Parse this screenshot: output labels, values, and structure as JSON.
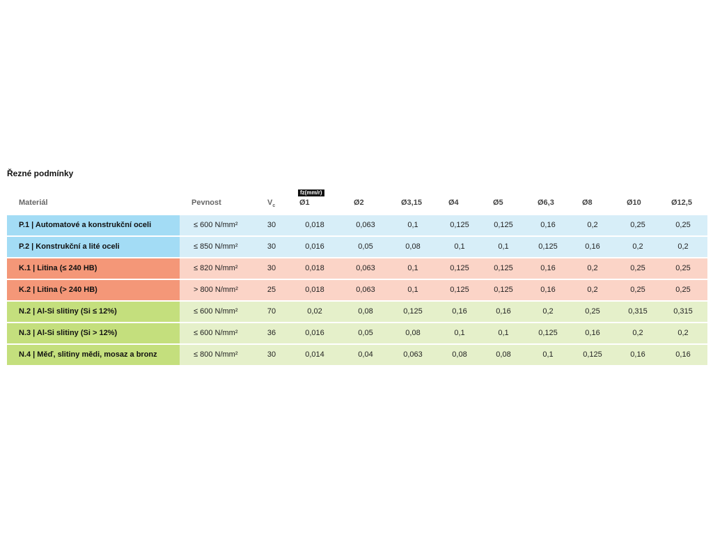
{
  "title": "Řezné podmínky",
  "header": {
    "material": "Materiál",
    "strength": "Pevnost",
    "vc": "V",
    "vc_sub": "c",
    "fz_label": "fz(mm/r)",
    "diameters": [
      "Ø1",
      "Ø2",
      "Ø3,15",
      "Ø4",
      "Ø5",
      "Ø6,3",
      "Ø8",
      "Ø10",
      "Ø12,5"
    ]
  },
  "rows": [
    {
      "material": "P.1 | Automatové a konstrukční oceli",
      "strength": "≤ 600 N/mm²",
      "vc": "30",
      "fz": [
        "0,018",
        "0,063",
        "0,1",
        "0,125",
        "0,125",
        "0,16",
        "0,2",
        "0,25",
        "0,25"
      ]
    },
    {
      "material": "P.2 | Konstrukční a lité oceli",
      "strength": "≤ 850 N/mm²",
      "vc": "30",
      "fz": [
        "0,016",
        "0,05",
        "0,08",
        "0,1",
        "0,1",
        "0,125",
        "0,16",
        "0,2",
        "0,2"
      ]
    },
    {
      "material": "K.1 | Litina (≤ 240 HB)",
      "strength": "≤ 820 N/mm²",
      "vc": "30",
      "fz": [
        "0,018",
        "0,063",
        "0,1",
        "0,125",
        "0,125",
        "0,16",
        "0,2",
        "0,25",
        "0,25"
      ]
    },
    {
      "material": "K.2 | Litina (> 240 HB)",
      "strength": "> 800 N/mm²",
      "vc": "25",
      "fz": [
        "0,018",
        "0,063",
        "0,1",
        "0,125",
        "0,125",
        "0,16",
        "0,2",
        "0,25",
        "0,25"
      ]
    },
    {
      "material": "N.2 | Al-Si slitiny (Si ≤ 12%)",
      "strength": "≤ 600 N/mm²",
      "vc": "70",
      "fz": [
        "0,02",
        "0,08",
        "0,125",
        "0,16",
        "0,16",
        "0,2",
        "0,25",
        "0,315",
        "0,315"
      ]
    },
    {
      "material": "N.3 | Al-Si slitiny (Si > 12%)",
      "strength": "≤ 600 N/mm²",
      "vc": "36",
      "fz": [
        "0,016",
        "0,05",
        "0,08",
        "0,1",
        "0,1",
        "0,125",
        "0,16",
        "0,2",
        "0,2"
      ]
    },
    {
      "material": "N.4 | Měď, slitiny mědi, mosaz a bronz",
      "strength": "≤ 800 N/mm²",
      "vc": "30",
      "fz": [
        "0,014",
        "0,04",
        "0,063",
        "0,08",
        "0,08",
        "0,1",
        "0,125",
        "0,16",
        "0,16"
      ]
    }
  ]
}
